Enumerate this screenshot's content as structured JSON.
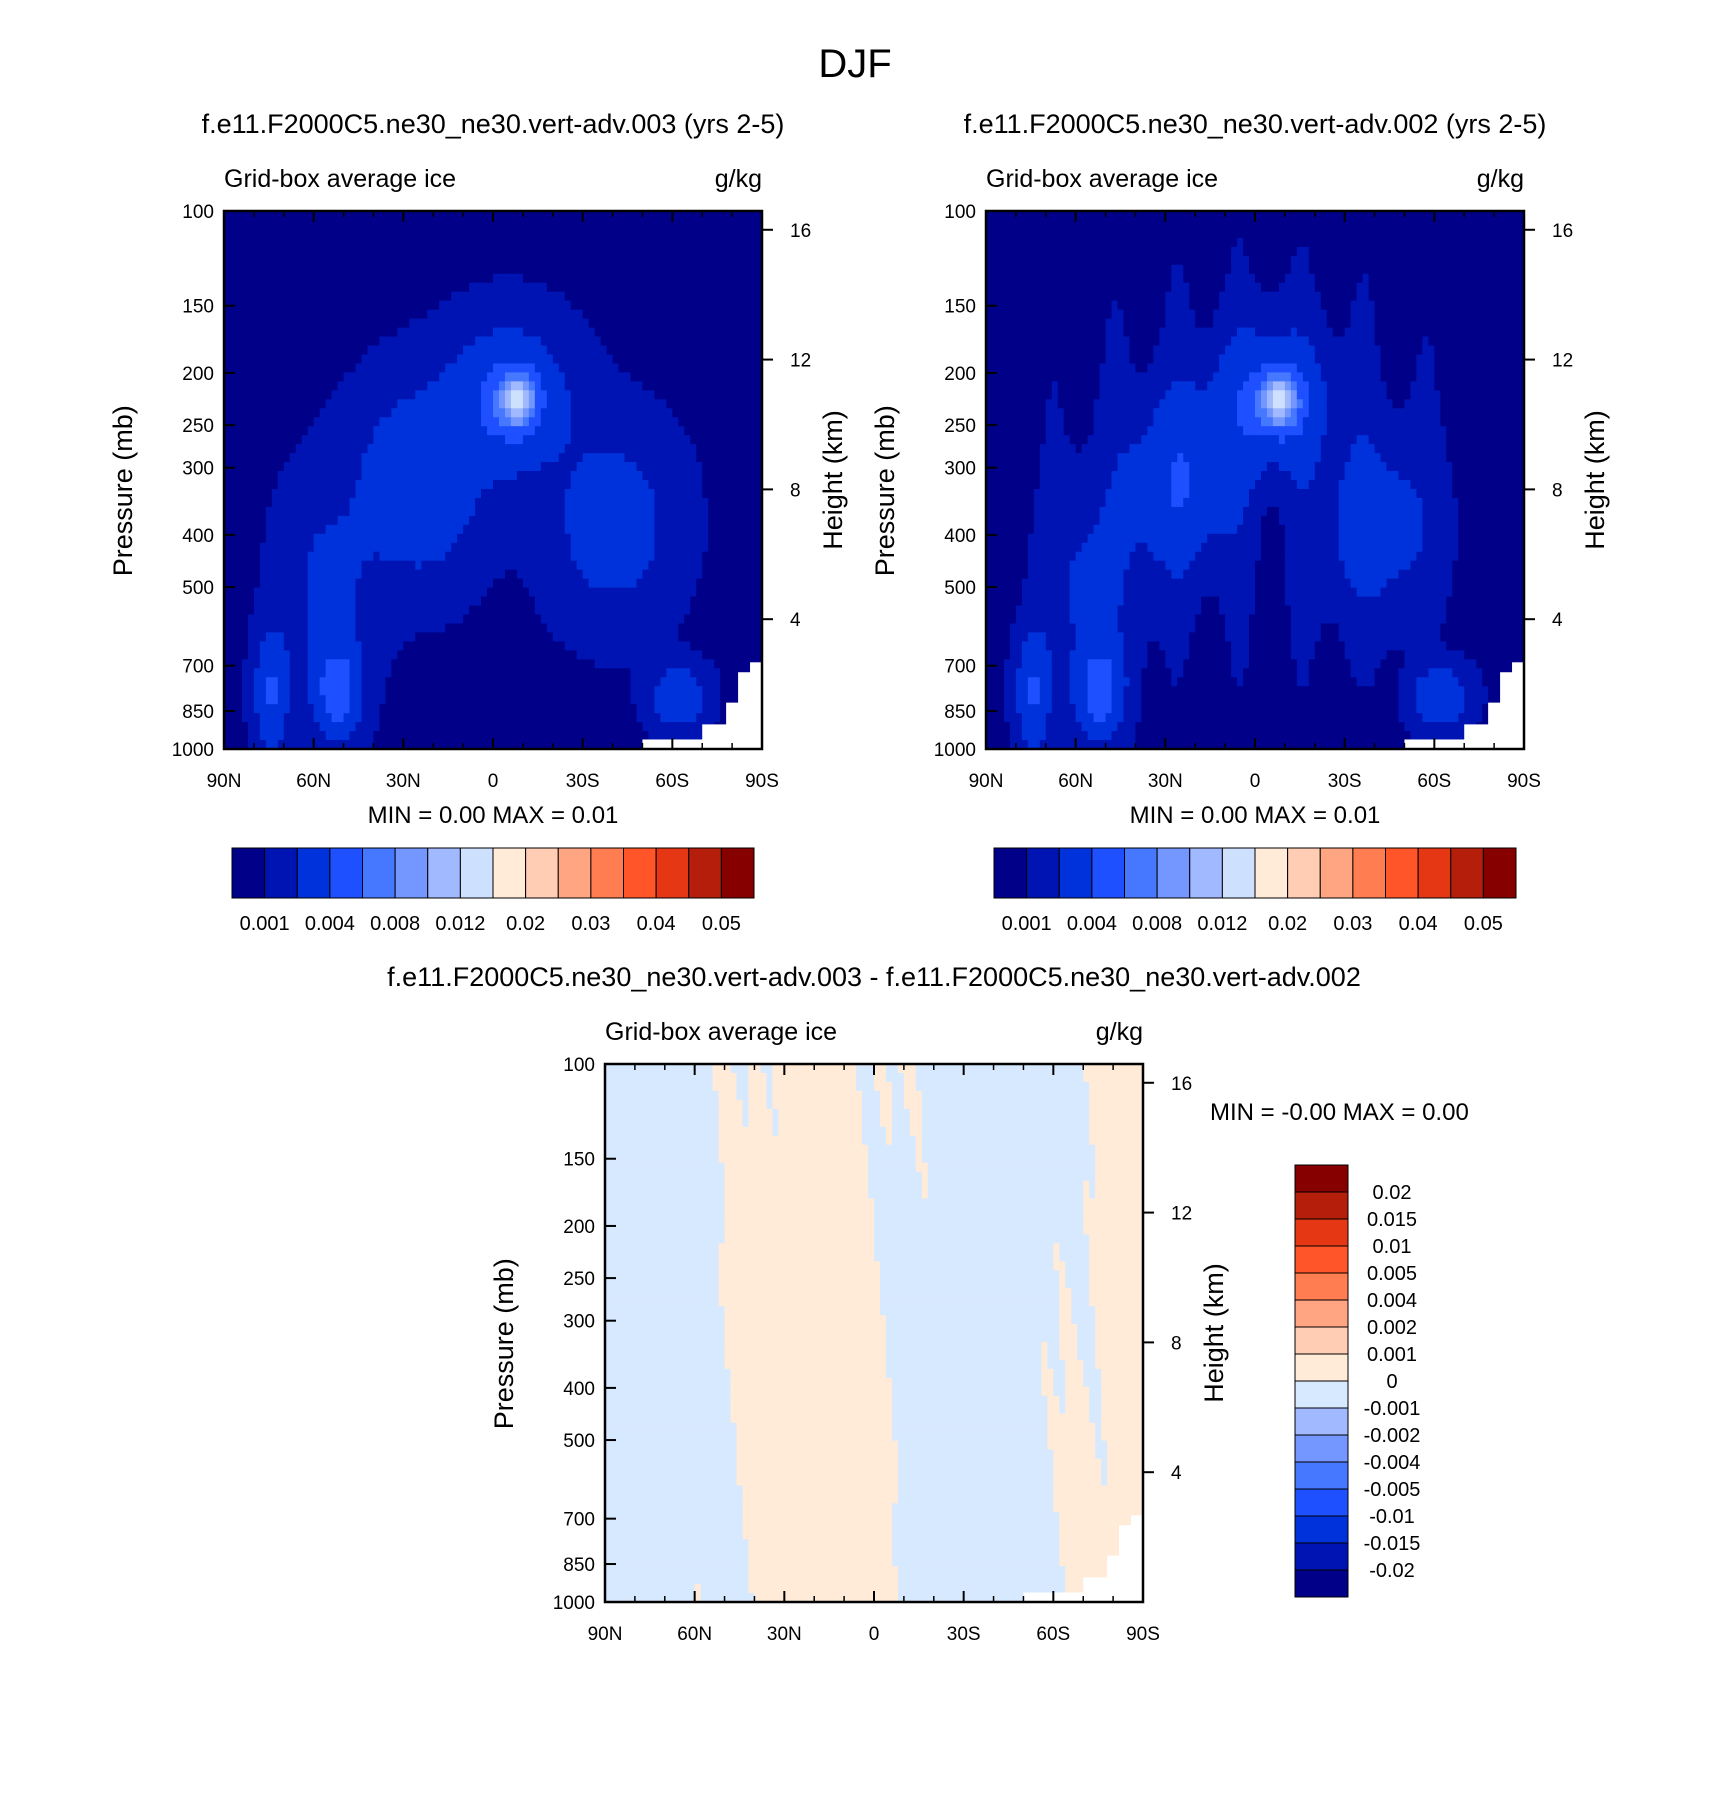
{
  "figure": {
    "title": "DJF"
  },
  "colors": {
    "abs_scale": [
      "#000088",
      "#0014b4",
      "#0032dc",
      "#1e50ff",
      "#4678ff",
      "#7396ff",
      "#a0b9ff",
      "#cde1ff",
      "#ffebd7",
      "#ffcdb4",
      "#ffa582",
      "#ff7d50",
      "#ff5528",
      "#e63714",
      "#b41e0a",
      "#870000"
    ],
    "diff_scale": [
      "#000088",
      "#0014b4",
      "#0032dc",
      "#1e50ff",
      "#4678ff",
      "#7396ff",
      "#a0b9ff",
      "#d7e9ff",
      "#ffebd7",
      "#ffcdb4",
      "#ffa582",
      "#ff7d50",
      "#ff5528",
      "#e63714",
      "#b41e0a",
      "#870000"
    ]
  },
  "chart_data": [
    {
      "type": "heatmap",
      "title": "f.e11.F2000C5.ne30_ne30.vert-adv.003 (yrs 2-5)",
      "subtitle_left": "Grid-box average ice",
      "subtitle_right": "g/kg",
      "ylabel": "Pressure (mb)",
      "ylabel_right": "Height (km)",
      "x_ticks": [
        "90N",
        "60N",
        "30N",
        "0",
        "30S",
        "60S",
        "90S"
      ],
      "x_values": [
        90,
        60,
        30,
        0,
        -30,
        -60,
        -90
      ],
      "xlim": [
        90,
        -90
      ],
      "y_ticks": [
        100,
        150,
        200,
        250,
        300,
        400,
        500,
        700,
        850,
        1000
      ],
      "ylim": [
        100,
        1000
      ],
      "height_ticks": [
        16,
        12,
        8,
        4
      ],
      "min_label": "MIN =   0.00  MAX =   0.01",
      "colorbar_labels": [
        "0.001",
        "0.004",
        "0.008",
        "0.012",
        "0.02",
        "0.03",
        "0.04",
        "0.05"
      ],
      "field": "ice_a"
    },
    {
      "type": "heatmap",
      "title": "f.e11.F2000C5.ne30_ne30.vert-adv.002 (yrs 2-5)",
      "subtitle_left": "Grid-box average ice",
      "subtitle_right": "g/kg",
      "ylabel": "Pressure (mb)",
      "ylabel_right": "Height (km)",
      "x_ticks": [
        "90N",
        "60N",
        "30N",
        "0",
        "30S",
        "60S",
        "90S"
      ],
      "x_values": [
        90,
        60,
        30,
        0,
        -30,
        -60,
        -90
      ],
      "xlim": [
        90,
        -90
      ],
      "y_ticks": [
        100,
        150,
        200,
        250,
        300,
        400,
        500,
        700,
        850,
        1000
      ],
      "ylim": [
        100,
        1000
      ],
      "height_ticks": [
        16,
        12,
        8,
        4
      ],
      "min_label": "MIN =   0.00  MAX =   0.01",
      "colorbar_labels": [
        "0.001",
        "0.004",
        "0.008",
        "0.012",
        "0.02",
        "0.03",
        "0.04",
        "0.05"
      ],
      "field": "ice_b"
    },
    {
      "type": "heatmap",
      "title": "f.e11.F2000C5.ne30_ne30.vert-adv.003 - f.e11.F2000C5.ne30_ne30.vert-adv.002",
      "subtitle_left": "Grid-box average ice",
      "subtitle_right": "g/kg",
      "ylabel": "Pressure (mb)",
      "ylabel_right": "Height (km)",
      "x_ticks": [
        "90N",
        "60N",
        "30N",
        "0",
        "30S",
        "60S",
        "90S"
      ],
      "x_values": [
        90,
        60,
        30,
        0,
        -30,
        -60,
        -90
      ],
      "xlim": [
        90,
        -90
      ],
      "y_ticks": [
        100,
        150,
        200,
        250,
        300,
        400,
        500,
        700,
        850,
        1000
      ],
      "ylim": [
        100,
        1000
      ],
      "height_ticks": [
        16,
        12,
        8,
        4
      ],
      "min_label": "MIN =  -0.00  MAX =   0.00",
      "colorbar_labels": [
        "0.02",
        "0.015",
        "0.01",
        "0.005",
        "0.004",
        "0.002",
        "0.001",
        "0",
        "-0.001",
        "-0.002",
        "-0.004",
        "-0.005",
        "-0.01",
        "-0.015",
        "-0.02"
      ],
      "field": "diff"
    }
  ]
}
